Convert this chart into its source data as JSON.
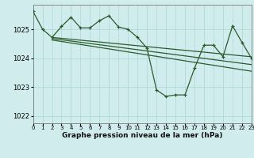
{
  "bg_color": "#d0ecec",
  "grid_color": "#a8d8d8",
  "line_color": "#2d5a2d",
  "ylim": [
    1021.75,
    1025.85
  ],
  "xlim": [
    0,
    23
  ],
  "yticks": [
    1022,
    1023,
    1024,
    1025
  ],
  "xticks": [
    0,
    1,
    2,
    3,
    4,
    5,
    6,
    7,
    8,
    9,
    10,
    11,
    12,
    13,
    14,
    15,
    16,
    17,
    18,
    19,
    20,
    21,
    22,
    23
  ],
  "xlabel": "Graphe pression niveau de la mer (hPa)",
  "series1_x": [
    0,
    1,
    2,
    3,
    4,
    5,
    6,
    7,
    8,
    9,
    10,
    11,
    12,
    13,
    14,
    15,
    16,
    17,
    18,
    19,
    20,
    21,
    22,
    23
  ],
  "series1_y": [
    1025.62,
    1025.0,
    1024.72,
    1025.1,
    1025.42,
    1025.05,
    1025.05,
    1025.3,
    1025.47,
    1025.08,
    1025.0,
    1024.72,
    1024.35,
    1022.9,
    1022.68,
    1022.73,
    1022.73,
    1023.65,
    1024.45,
    1024.45,
    1024.05,
    1025.12,
    1024.55,
    1024.0
  ],
  "series2_x": [
    2,
    23
  ],
  "series2_y": [
    1024.72,
    1024.05
  ],
  "series3_x": [
    2,
    23
  ],
  "series3_y": [
    1024.68,
    1023.78
  ],
  "series4_x": [
    2,
    23
  ],
  "series4_y": [
    1024.63,
    1023.55
  ]
}
